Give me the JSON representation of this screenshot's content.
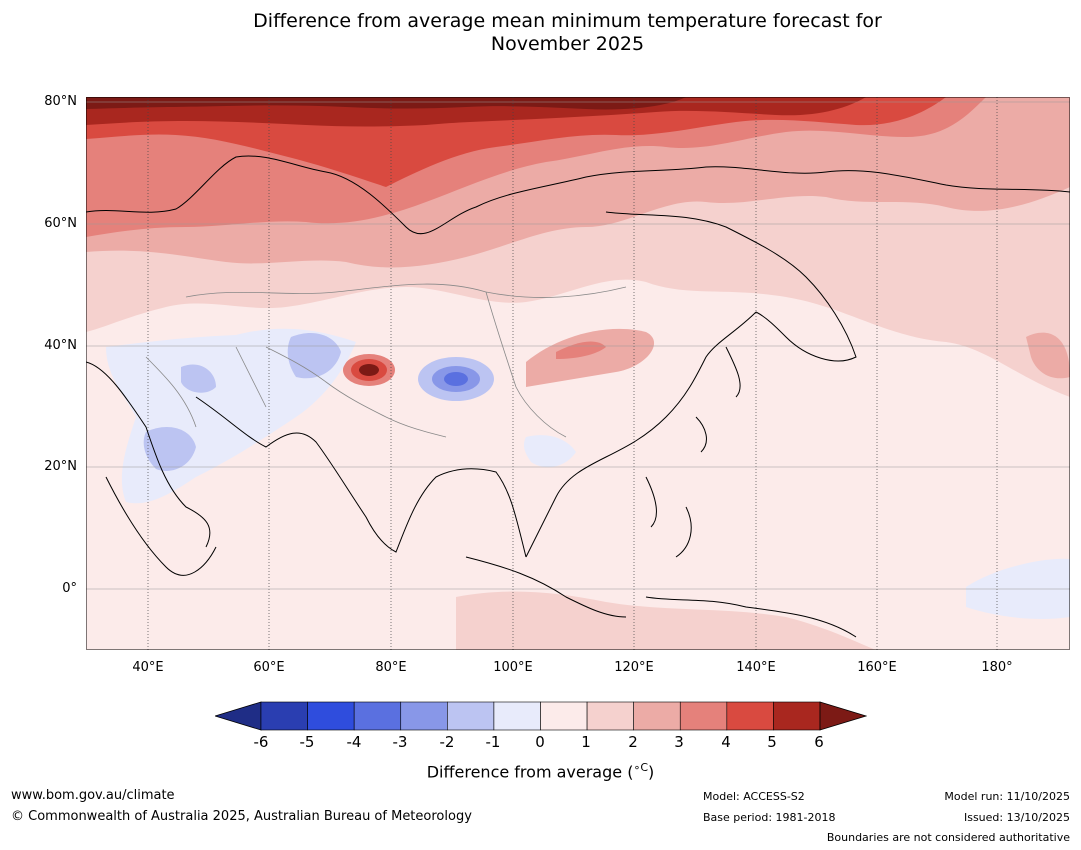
{
  "title_line1": "Difference from average mean minimum temperature forecast for",
  "title_line2": "November 2025",
  "map": {
    "latitude_labels": [
      "80°N",
      "60°N",
      "40°N",
      "20°N",
      "0°"
    ],
    "longitude_labels": [
      "40°E",
      "60°E",
      "80°E",
      "100°E",
      "120°E",
      "140°E",
      "160°E",
      "180°"
    ],
    "graticule": "dotted",
    "extent_lon": [
      30,
      190
    ],
    "extent_lat": [
      -10,
      80
    ],
    "notable_anomalies": [
      {
        "region": "Arctic Russia / Kara Sea",
        "anomaly_c": 6
      },
      {
        "region": "Western Himalaya",
        "anomaly_c": 6
      },
      {
        "region": "Tibetan Plateau",
        "anomaly_c": -5
      },
      {
        "region": "Iran / Arabian Peninsula",
        "anomaly_c": -2
      },
      {
        "region": "Equatorial Pacific",
        "anomaly_c": -1
      }
    ]
  },
  "colorbar": {
    "ticks": [
      "-6",
      "-5",
      "-4",
      "-3",
      "-2",
      "-1",
      "0",
      "1",
      "2",
      "3",
      "4",
      "5",
      "6"
    ],
    "colors": [
      "#1f2d86",
      "#2a3eb1",
      "#2f4ddd",
      "#5a70e0",
      "#8897e8",
      "#bcc4f2",
      "#e8ebfb",
      "#fcebea",
      "#f5d1ce",
      "#ecaba6",
      "#e5817b",
      "#d94a40",
      "#a9271f",
      "#7c1a15"
    ],
    "label": "Difference from average (°C)",
    "label_prefix": "Difference from average (",
    "label_unit": "∘C",
    "label_suffix": ")"
  },
  "footer": {
    "website": "www.bom.gov.au/climate",
    "copyright": "© Commonwealth of Australia 2025, Australian Bureau of Meteorology",
    "model": "Model: ACCESS-S2",
    "base_period": "Base period: 1981-2018",
    "model_run": "Model run: 11/10/2025",
    "issued": "Issued: 13/10/2025",
    "disclaimer": "Boundaries are not considered authoritative"
  }
}
